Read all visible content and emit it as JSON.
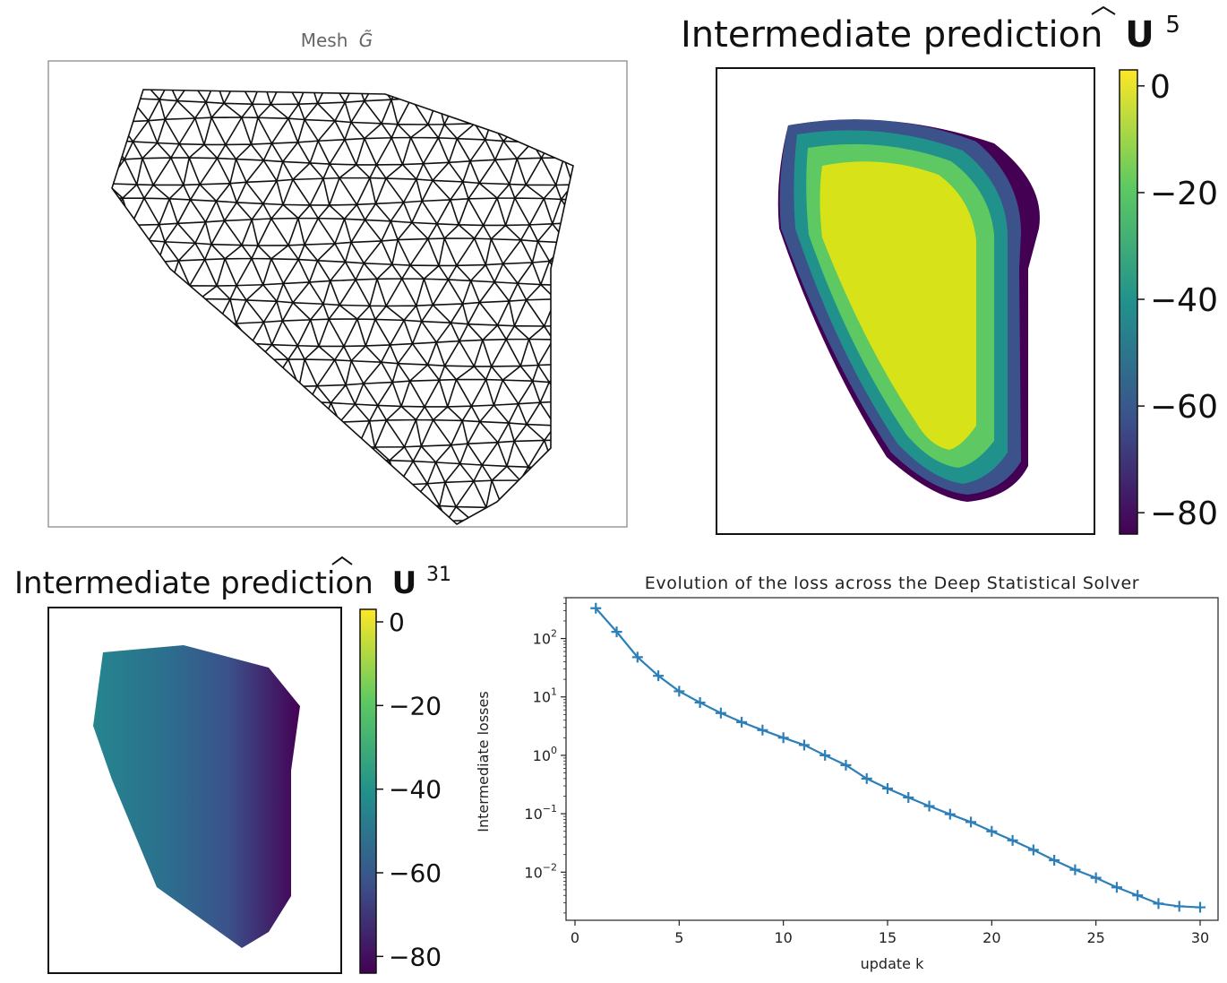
{
  "panels": {
    "mesh": {
      "title": "Mesh",
      "title_symbol": "G̃"
    },
    "pred5": {
      "title": "Intermediate prediction",
      "symbol": "U",
      "superscript": "5",
      "colorbar_ticks": [
        "0",
        "−20",
        "−40",
        "−60",
        "−80"
      ],
      "colorbar_range": [
        -84,
        3
      ]
    },
    "pred31": {
      "title": "Intermediate prediction",
      "symbol": "U",
      "superscript": "31",
      "colorbar_ticks": [
        "0",
        "−20",
        "−40",
        "−60",
        "−80"
      ],
      "colorbar_range": [
        -84,
        3
      ]
    }
  },
  "colors": {
    "viridis_stops": [
      "#440154",
      "#3b528b",
      "#21918c",
      "#5ec962",
      "#fde725"
    ],
    "series_color": "#2c7fb8",
    "mesh_color": "#111111"
  },
  "chart_data": [
    {
      "type": "line",
      "title": "Evolution of the loss across the Deep Statistical Solver",
      "xlabel": "update k",
      "ylabel": "Intermediate losses",
      "yscale": "log",
      "xlim": [
        0,
        30
      ],
      "ylim": [
        0.0015,
        500
      ],
      "x_ticks": [
        "0",
        "5",
        "10",
        "15",
        "20",
        "25",
        "30"
      ],
      "y_ticks": [
        {
          "base": "10",
          "exp": "2"
        },
        {
          "base": "10",
          "exp": "1"
        },
        {
          "base": "10",
          "exp": "0"
        },
        {
          "base": "10",
          "exp": "−1"
        },
        {
          "base": "10",
          "exp": "−2"
        }
      ],
      "marker": "+",
      "series": [
        {
          "x": [
            1,
            2,
            3,
            4,
            5,
            6,
            7,
            8,
            9,
            10,
            11,
            12,
            13,
            14,
            15,
            16,
            17,
            18,
            19,
            20,
            21,
            22,
            23,
            24,
            25,
            26,
            27,
            28,
            29,
            30
          ],
          "values": [
            330,
            130,
            48,
            23,
            12.5,
            8.0,
            5.3,
            3.7,
            2.7,
            2.0,
            1.5,
            1.0,
            0.68,
            0.4,
            0.27,
            0.19,
            0.135,
            0.098,
            0.072,
            0.05,
            0.035,
            0.024,
            0.016,
            0.011,
            0.008,
            0.0055,
            0.004,
            0.0029,
            0.0026,
            0.0025
          ]
        }
      ]
    }
  ]
}
